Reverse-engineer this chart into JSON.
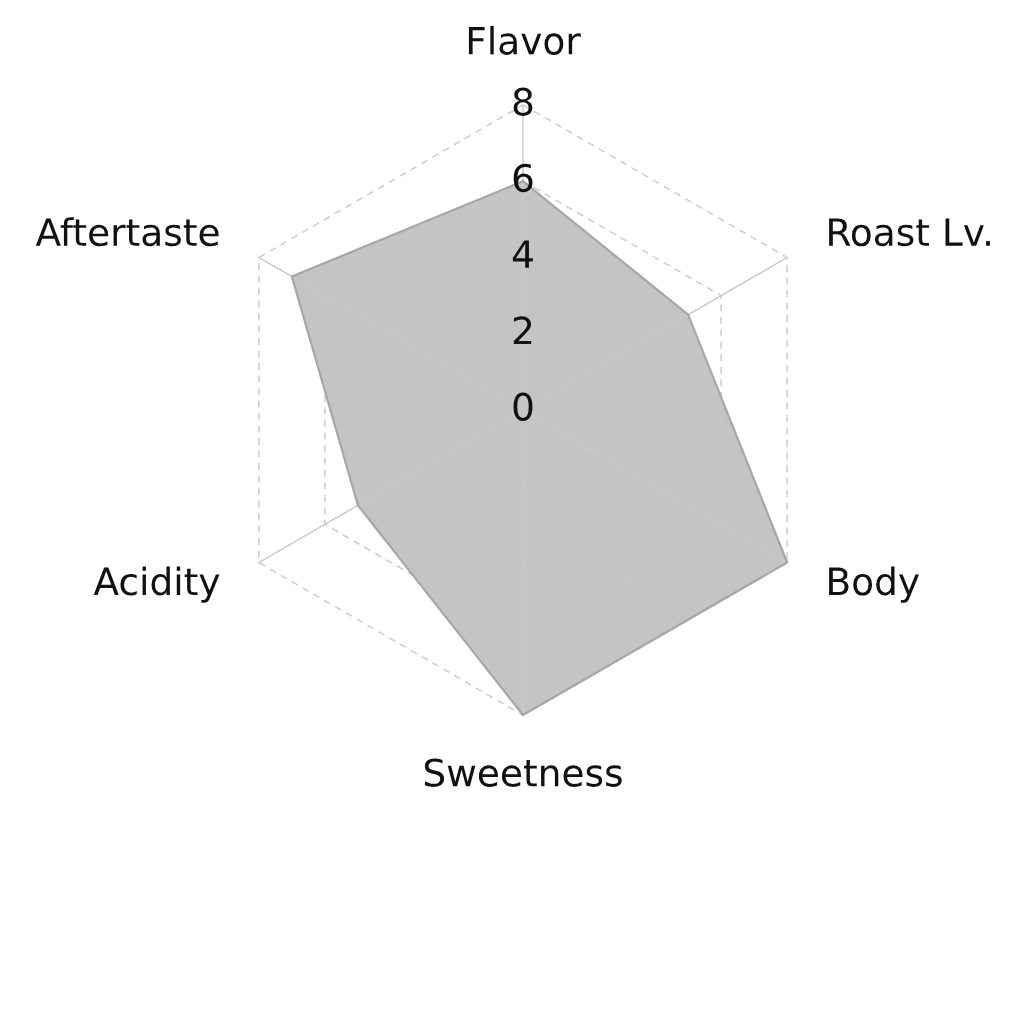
{
  "chart_data": {
    "type": "radar",
    "categories": [
      "Flavor",
      "Roast Lv.",
      "Body",
      "Sweetness",
      "Acidity",
      "Aftertaste"
    ],
    "series": [
      {
        "color": "#c4c4c4",
        "values": [
          6,
          5,
          8,
          8,
          5,
          7
        ]
      }
    ],
    "ylim": [
      0,
      8
    ],
    "yticks": [
      0,
      2,
      4,
      6,
      8
    ],
    "grid": true
  }
}
